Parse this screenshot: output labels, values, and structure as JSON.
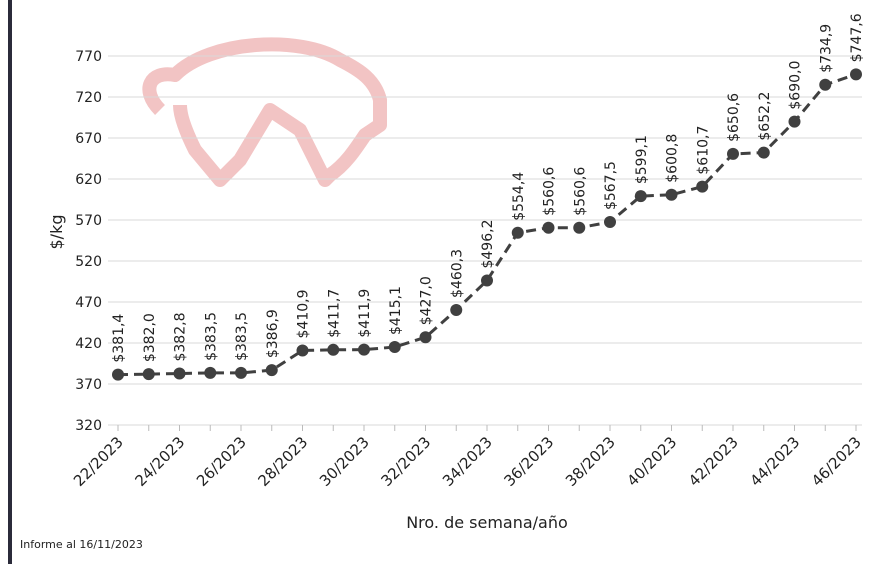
{
  "chart_data": {
    "type": "line",
    "ylabel": "$/kg",
    "xlabel": "Nro. de semana/año",
    "note": "Informe al 16/11/2023",
    "categories": [
      "22/2023",
      null,
      "24/2023",
      null,
      "26/2023",
      null,
      "28/2023",
      null,
      "30/2023",
      null,
      "32/2023",
      null,
      "34/2023",
      null,
      "36/2023",
      null,
      "38/2023",
      null,
      "40/2023",
      null,
      "42/2023",
      null,
      "44/2023",
      null,
      "46/2023"
    ],
    "series": [
      {
        "color": "#404040",
        "values": [
          381.4,
          382.0,
          382.8,
          383.5,
          383.5,
          386.9,
          410.9,
          411.7,
          411.9,
          415.1,
          427.0,
          460.3,
          496.2,
          554.4,
          560.6,
          560.6,
          567.5,
          599.1,
          600.8,
          610.7,
          650.6,
          652.2,
          690.0,
          734.9,
          747.6
        ],
        "value_labels": [
          "$381,4",
          "$382,0",
          "$382,8",
          "$383,5",
          "$383,5",
          "$386,9",
          "$410,9",
          "$411,7",
          "$411,9",
          "$415,1",
          "$427,0",
          "$460,3",
          "$496,2",
          "$554,4",
          "$560,6",
          "$560,6",
          "$567,5",
          "$599,1",
          "$600,8",
          "$610,7",
          "$650,6",
          "$652,2",
          "$690,0",
          "$734,9",
          "$747,6"
        ]
      }
    ],
    "ylim": [
      320,
      770
    ],
    "yticks": [
      320,
      370,
      420,
      470,
      520,
      570,
      620,
      670,
      720,
      770
    ],
    "grid": true
  }
}
